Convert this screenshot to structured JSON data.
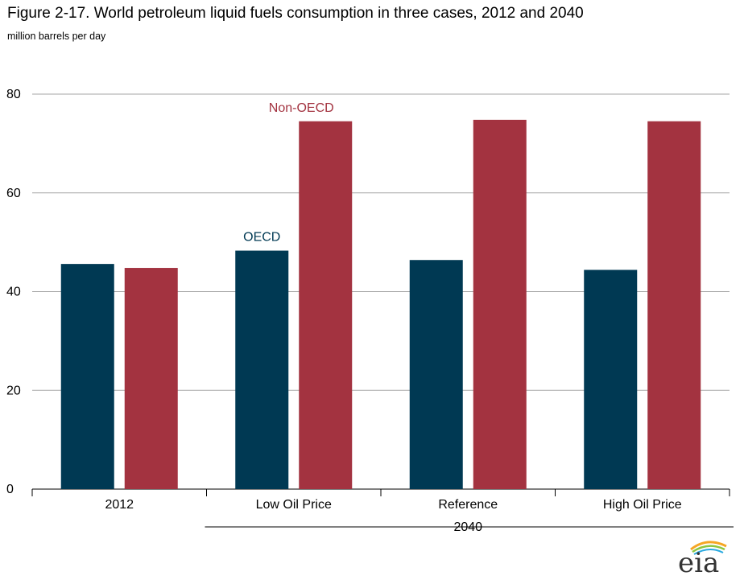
{
  "header": {
    "title": "Figure 2-17. World petroleum liquid fuels consumption in three cases, 2012 and 2040",
    "subtitle": "million barrels per day"
  },
  "logo": {
    "text": "eia",
    "icon": "eia-logo-icon"
  },
  "chart_data": {
    "type": "bar",
    "title": "Figure 2-17. World petroleum liquid fuels consumption in three cases, 2012 and 2040",
    "ylabel": "million barrels per day",
    "xlabel": "",
    "ylim": [
      0,
      80
    ],
    "yticks": [
      0,
      20,
      40,
      60,
      80
    ],
    "grid": true,
    "categories": [
      "2012",
      "Low Oil Price",
      "Reference",
      "High Oil Price"
    ],
    "group_label": "2040",
    "group_categories": [
      "Low Oil Price",
      "Reference",
      "High Oil Price"
    ],
    "series": [
      {
        "name": "OECD",
        "color": "#003953",
        "values": [
          45.6,
          48.3,
          46.4,
          44.4
        ]
      },
      {
        "name": "Non-OECD",
        "color": "#a33340",
        "values": [
          44.8,
          74.5,
          74.8,
          74.5
        ]
      }
    ],
    "legend": "inline labels above Low Oil Price bars"
  }
}
